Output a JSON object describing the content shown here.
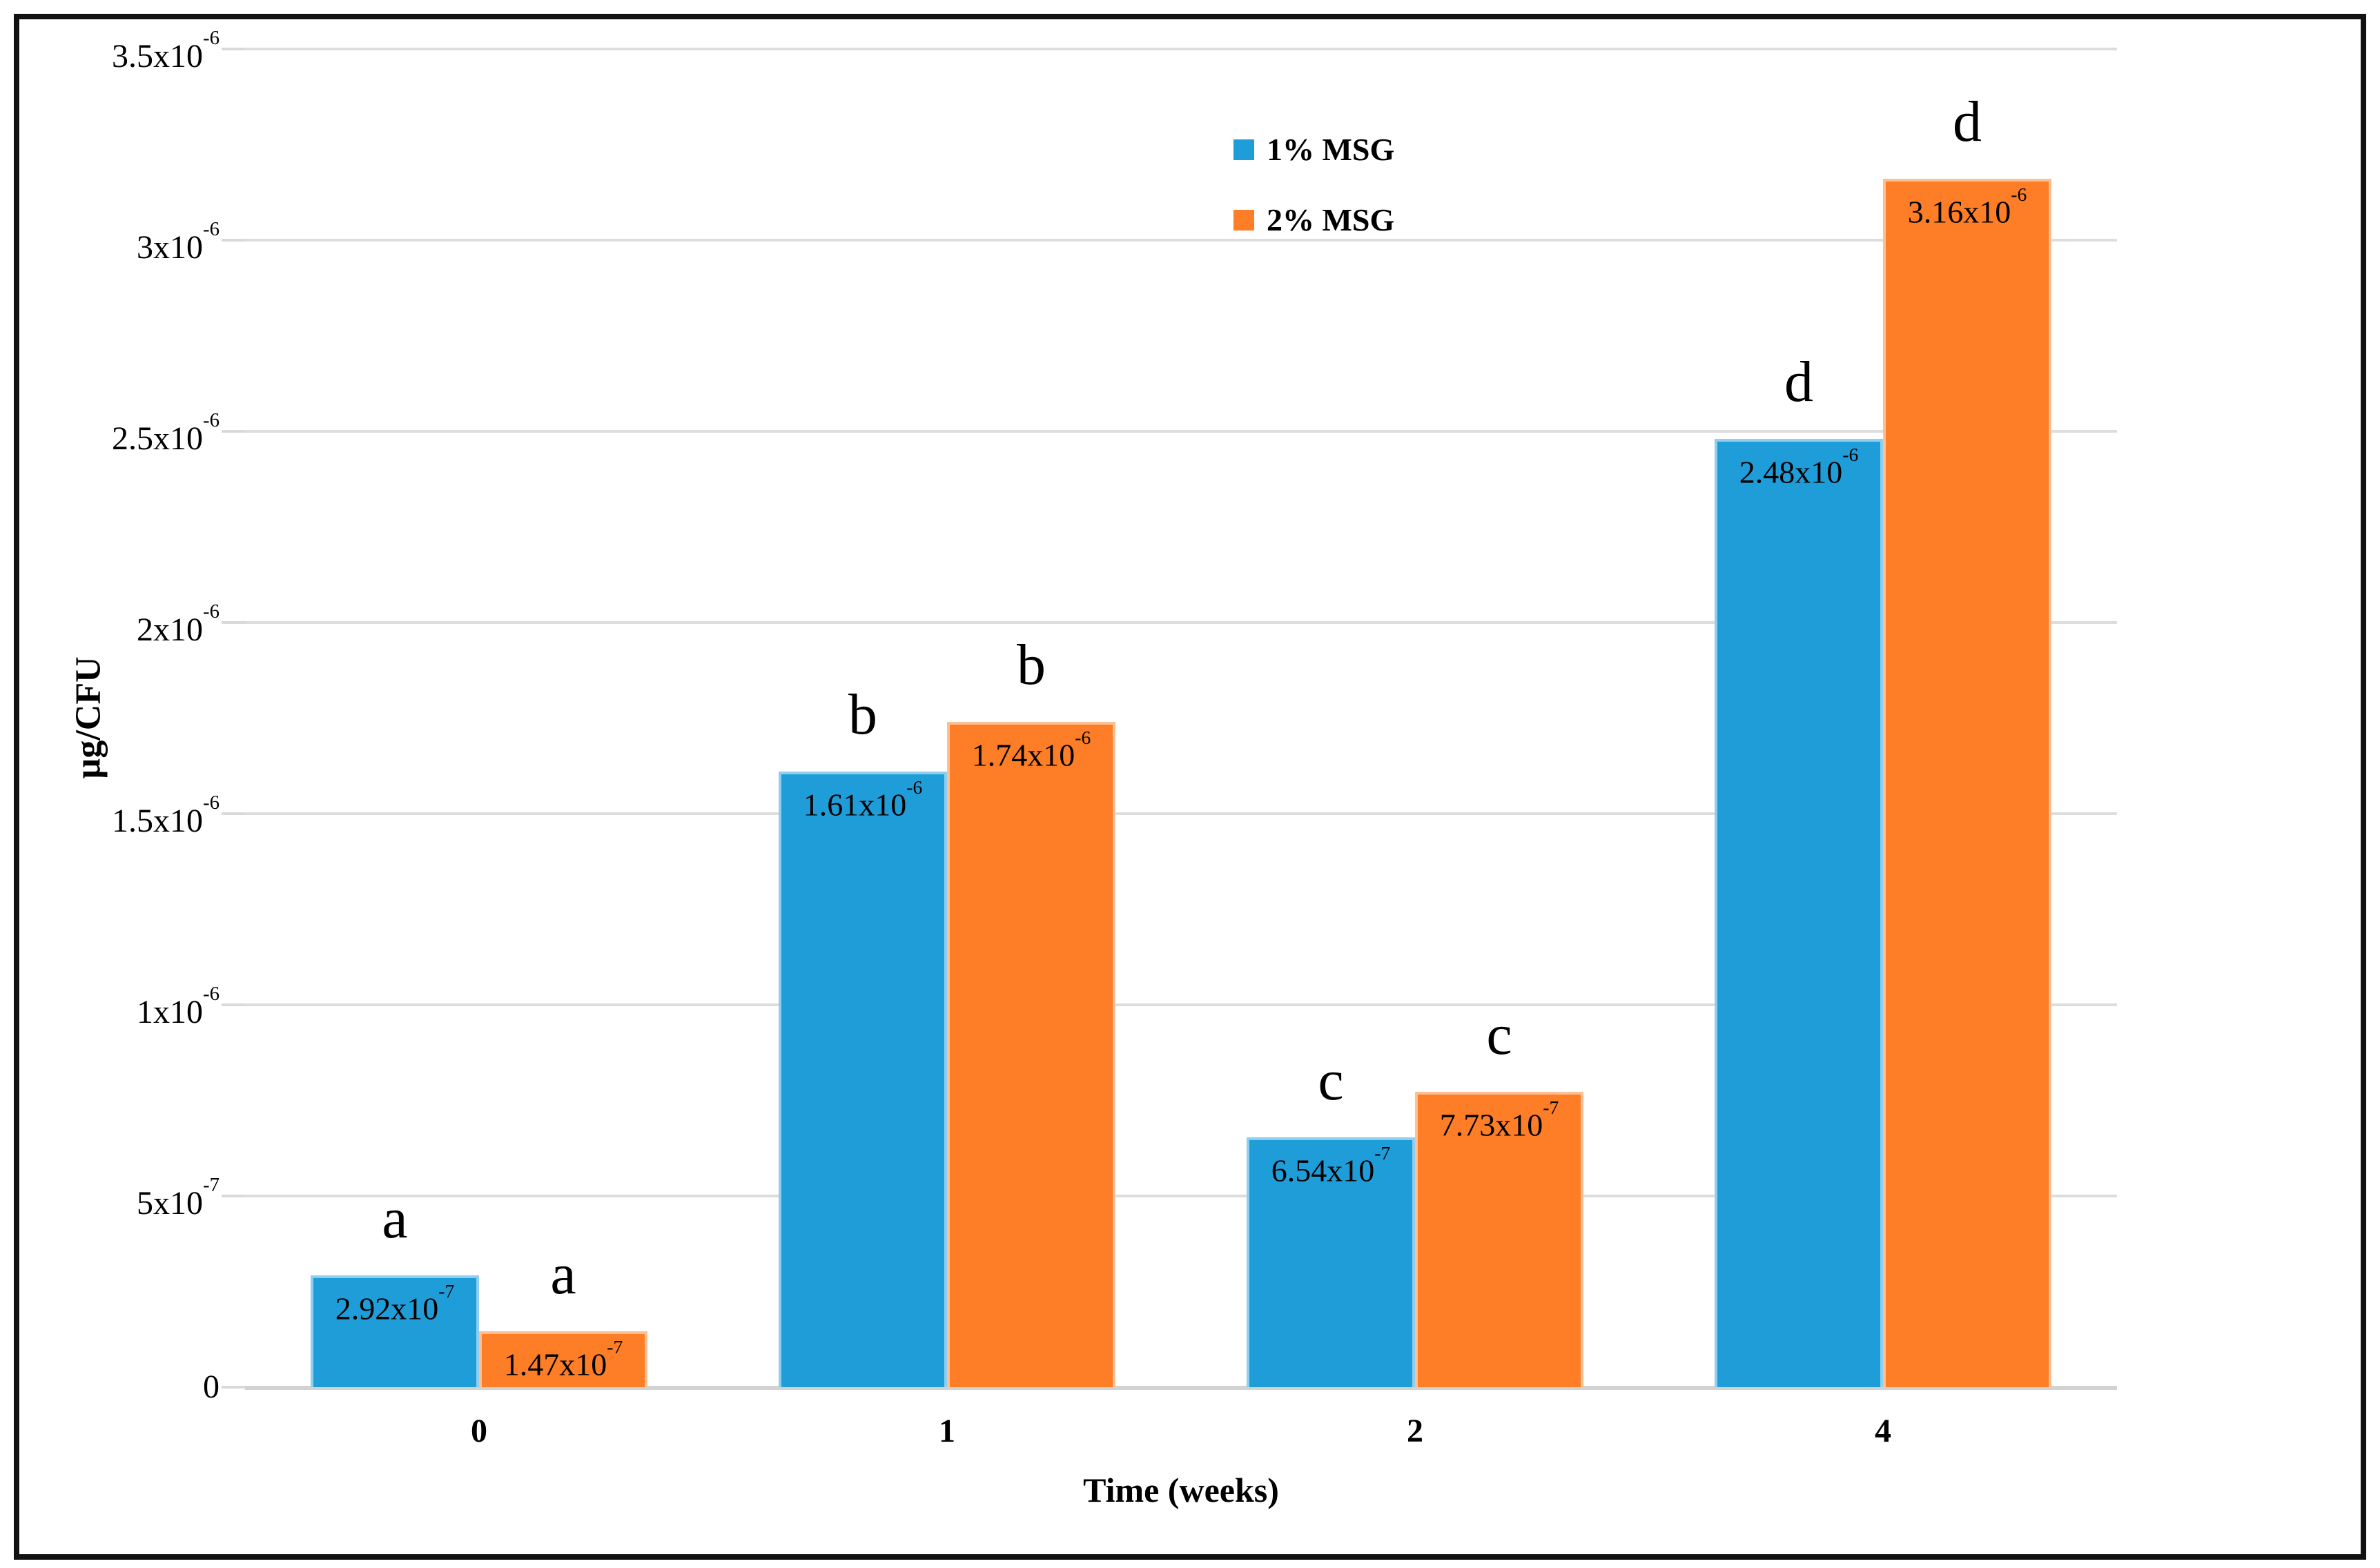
{
  "chart_data": {
    "type": "bar",
    "title": "",
    "xlabel": "Time (weeks)",
    "ylabel": "µg/CFU",
    "categories": [
      "0",
      "1",
      "2",
      "4"
    ],
    "ylim": [
      0,
      3.5e-06
    ],
    "ytick_step": 5e-07,
    "grid": "horizontal",
    "legend_position": "top-center",
    "yticks": [
      {
        "value": 0,
        "base": "0",
        "exp": ""
      },
      {
        "value": 5e-07,
        "base": "5x10",
        "exp": "-7"
      },
      {
        "value": 1e-06,
        "base": "1x10",
        "exp": "-6"
      },
      {
        "value": 1.5e-06,
        "base": "1.5x10",
        "exp": "-6"
      },
      {
        "value": 2e-06,
        "base": "2x10",
        "exp": "-6"
      },
      {
        "value": 2.5e-06,
        "base": "2.5x10",
        "exp": "-6"
      },
      {
        "value": 3e-06,
        "base": "3x10",
        "exp": "-6"
      },
      {
        "value": 3.5e-06,
        "base": "3.5x10",
        "exp": "-6"
      }
    ],
    "series": [
      {
        "name": "1% MSG",
        "color": "#1F9DD8",
        "values": [
          2.92e-07,
          1.61e-06,
          6.54e-07,
          2.48e-06
        ],
        "data_labels": [
          {
            "base": "2.92x10",
            "exp": "-7"
          },
          {
            "base": "1.61x10",
            "exp": "-6"
          },
          {
            "base": "6.54x10",
            "exp": "-7"
          },
          {
            "base": "2.48x10",
            "exp": "-6"
          }
        ],
        "sig_letters": [
          "a",
          "b",
          "c",
          "d"
        ]
      },
      {
        "name": "2% MSG",
        "color": "#FD7E26",
        "values": [
          1.47e-07,
          1.74e-06,
          7.73e-07,
          3.16e-06
        ],
        "data_labels": [
          {
            "base": "1.47x10",
            "exp": "-7"
          },
          {
            "base": "1.74x10",
            "exp": "-6"
          },
          {
            "base": "7.73x10",
            "exp": "-7"
          },
          {
            "base": "3.16x10",
            "exp": "-6"
          }
        ],
        "sig_letters": [
          "a",
          "b",
          "c",
          "d"
        ]
      }
    ]
  }
}
